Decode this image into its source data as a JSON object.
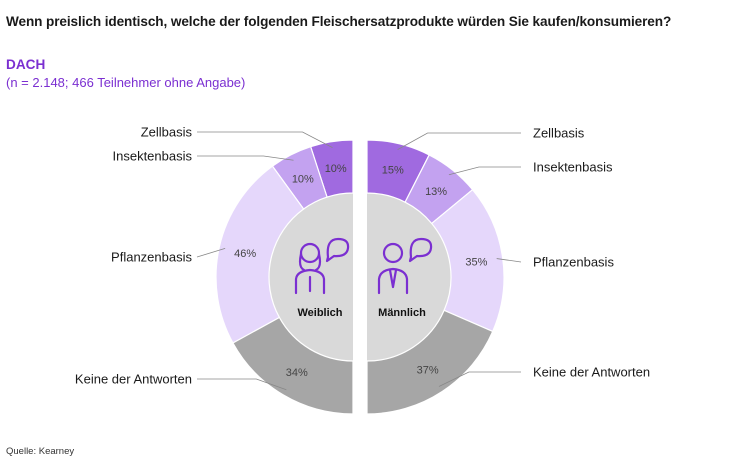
{
  "title": "Wenn preislich identisch, welche der folgenden Fleischersatzprodukte würden Sie kaufen/konsumieren?",
  "subtitle": "DACH",
  "note": "(n = 2.148; 466 Teilnehmer ohne Angabe)",
  "source": "Quelle: Kearney",
  "colors": {
    "accent": "#7b2fd1",
    "Zellbasis": "#a06ae0",
    "Insektenbasis": "#c3a2f0",
    "Pflanzenbasis": "#e5d7fb",
    "Keine der Antworten": "#a6a6a6",
    "center": "#d9d9d9",
    "leader": "#888888",
    "icon": "#7b2fd1"
  },
  "chart_data": {
    "type": "pie",
    "categories": [
      "Zellbasis",
      "Insektenbasis",
      "Pflanzenbasis",
      "Keine der Antworten"
    ],
    "series": [
      {
        "name": "Weiblich",
        "values": [
          10,
          10,
          46,
          34
        ],
        "labels": [
          "10%",
          "10%",
          "46%",
          "34%"
        ],
        "icon": "woman-speech-icon"
      },
      {
        "name": "Männlich",
        "values": [
          15,
          13,
          35,
          37
        ],
        "labels": [
          "15%",
          "13%",
          "35%",
          "37%"
        ],
        "icon": "man-speech-icon"
      }
    ]
  }
}
